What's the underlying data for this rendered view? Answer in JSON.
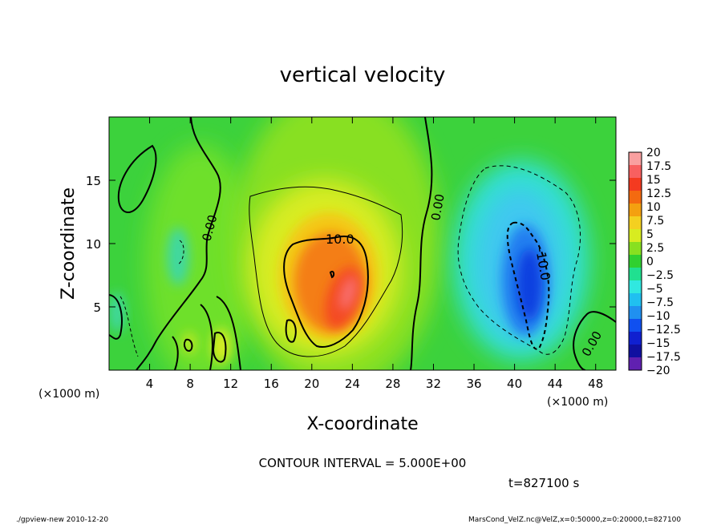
{
  "chart_data": {
    "type": "heatmap",
    "title": "vertical velocity",
    "xlabel": "X-coordinate",
    "ylabel": "Z-coordinate",
    "x_unit_left": "(×1000 m)",
    "x_unit_right": "(×1000 m)",
    "xlim": [
      0,
      50
    ],
    "ylim": [
      0,
      20
    ],
    "x_ticks": [
      4,
      8,
      12,
      16,
      20,
      24,
      28,
      32,
      36,
      40,
      44,
      48
    ],
    "y_ticks": [
      5,
      10,
      15
    ],
    "colorbar": {
      "labels": [
        "20",
        "17.5",
        "15",
        "12.5",
        "10",
        "7.5",
        "5",
        "2.5",
        "0",
        "−2.5",
        "−5",
        "−7.5",
        "−10",
        "−12.5",
        "−15",
        "−17.5",
        "−20"
      ],
      "colors": [
        "#f9a0a0",
        "#f86060",
        "#f43a20",
        "#f46a10",
        "#f4a010",
        "#f4d020",
        "#d8ec20",
        "#88e020",
        "#30d030",
        "#20e090",
        "#30e8e0",
        "#20c0f0",
        "#2090f0",
        "#1050f0",
        "#1020d0",
        "#1010a0",
        "#6020b0"
      ]
    },
    "contour_labels": [
      "0.00",
      "0.00",
      "10.0",
      "-10.0",
      "0.00"
    ],
    "annotations": {
      "contour_interval": "CONTOUR INTERVAL = 5.000E+00",
      "time": "t=827100 s",
      "footer_left": "./gpview-new  2010-12-20",
      "footer_right": "MarsCond_VelZ.nc@VelZ,x=0:50000,z=0:20000,t=827100"
    },
    "features": [
      {
        "name": "updraft-core",
        "x": 22.0,
        "z": 7.5,
        "value": 17.5
      },
      {
        "name": "downdraft-core",
        "x": 41.5,
        "z": 7.0,
        "value": -15.0
      }
    ]
  }
}
